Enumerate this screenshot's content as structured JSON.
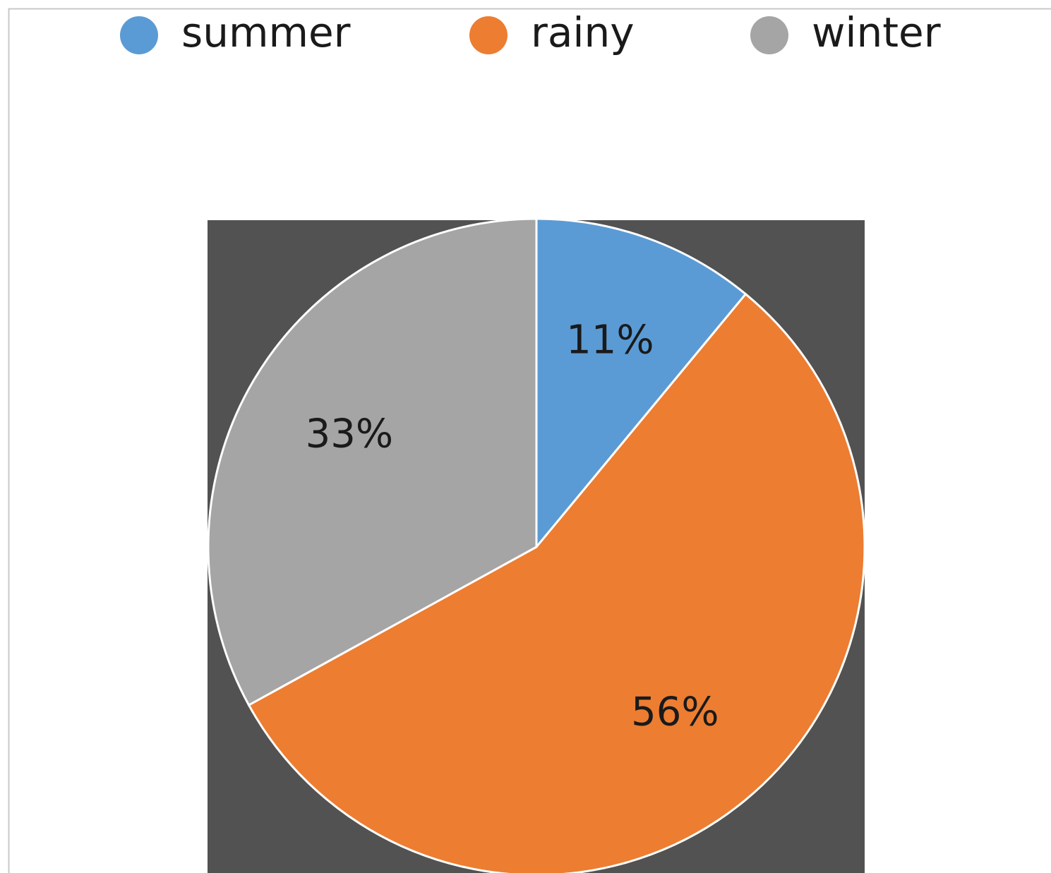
{
  "chart_data": {
    "type": "pie",
    "categories": [
      "summer",
      "rainy",
      "winter"
    ],
    "values": [
      11,
      56,
      33
    ],
    "value_labels": [
      "11%",
      "56%",
      "33%"
    ],
    "colors": [
      "#5b9bd5",
      "#ed7d31",
      "#a5a5a5"
    ],
    "legend": "top"
  }
}
